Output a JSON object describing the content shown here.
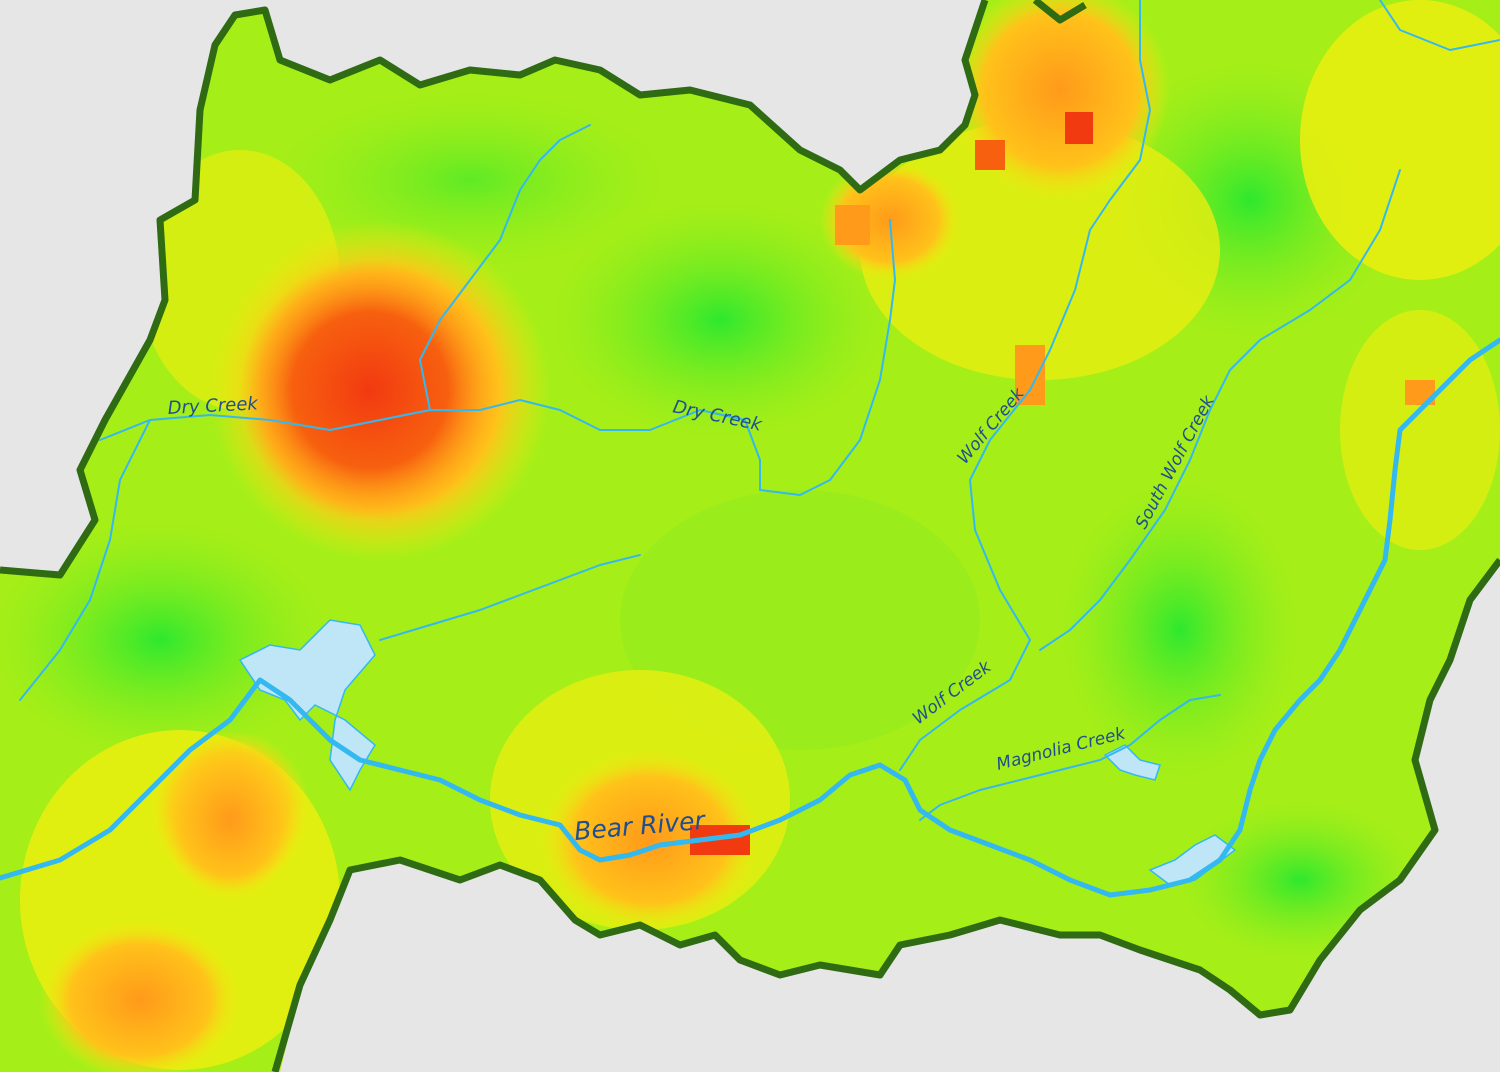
{
  "map": {
    "colors": {
      "background": "#e6e6e6",
      "boundary": "#2f6b12",
      "water": "#33b8f0",
      "lake_fill": "#bfe6f7",
      "label": "#1f4f8f",
      "low": "#2ee82e",
      "mid": "#d8f012",
      "high": "#ff9a1a",
      "very_high": "#f23a10"
    },
    "labels": {
      "dry_creek_west": "Dry Creek",
      "dry_creek_east": "Dry Creek",
      "wolf_creek_upper": "Wolf Creek",
      "wolf_creek_lower": "Wolf Creek",
      "south_wolf_creek": "South Wolf Creek",
      "magnolia_creek": "Magnolia Creek",
      "bear_river": "Bear River"
    }
  }
}
